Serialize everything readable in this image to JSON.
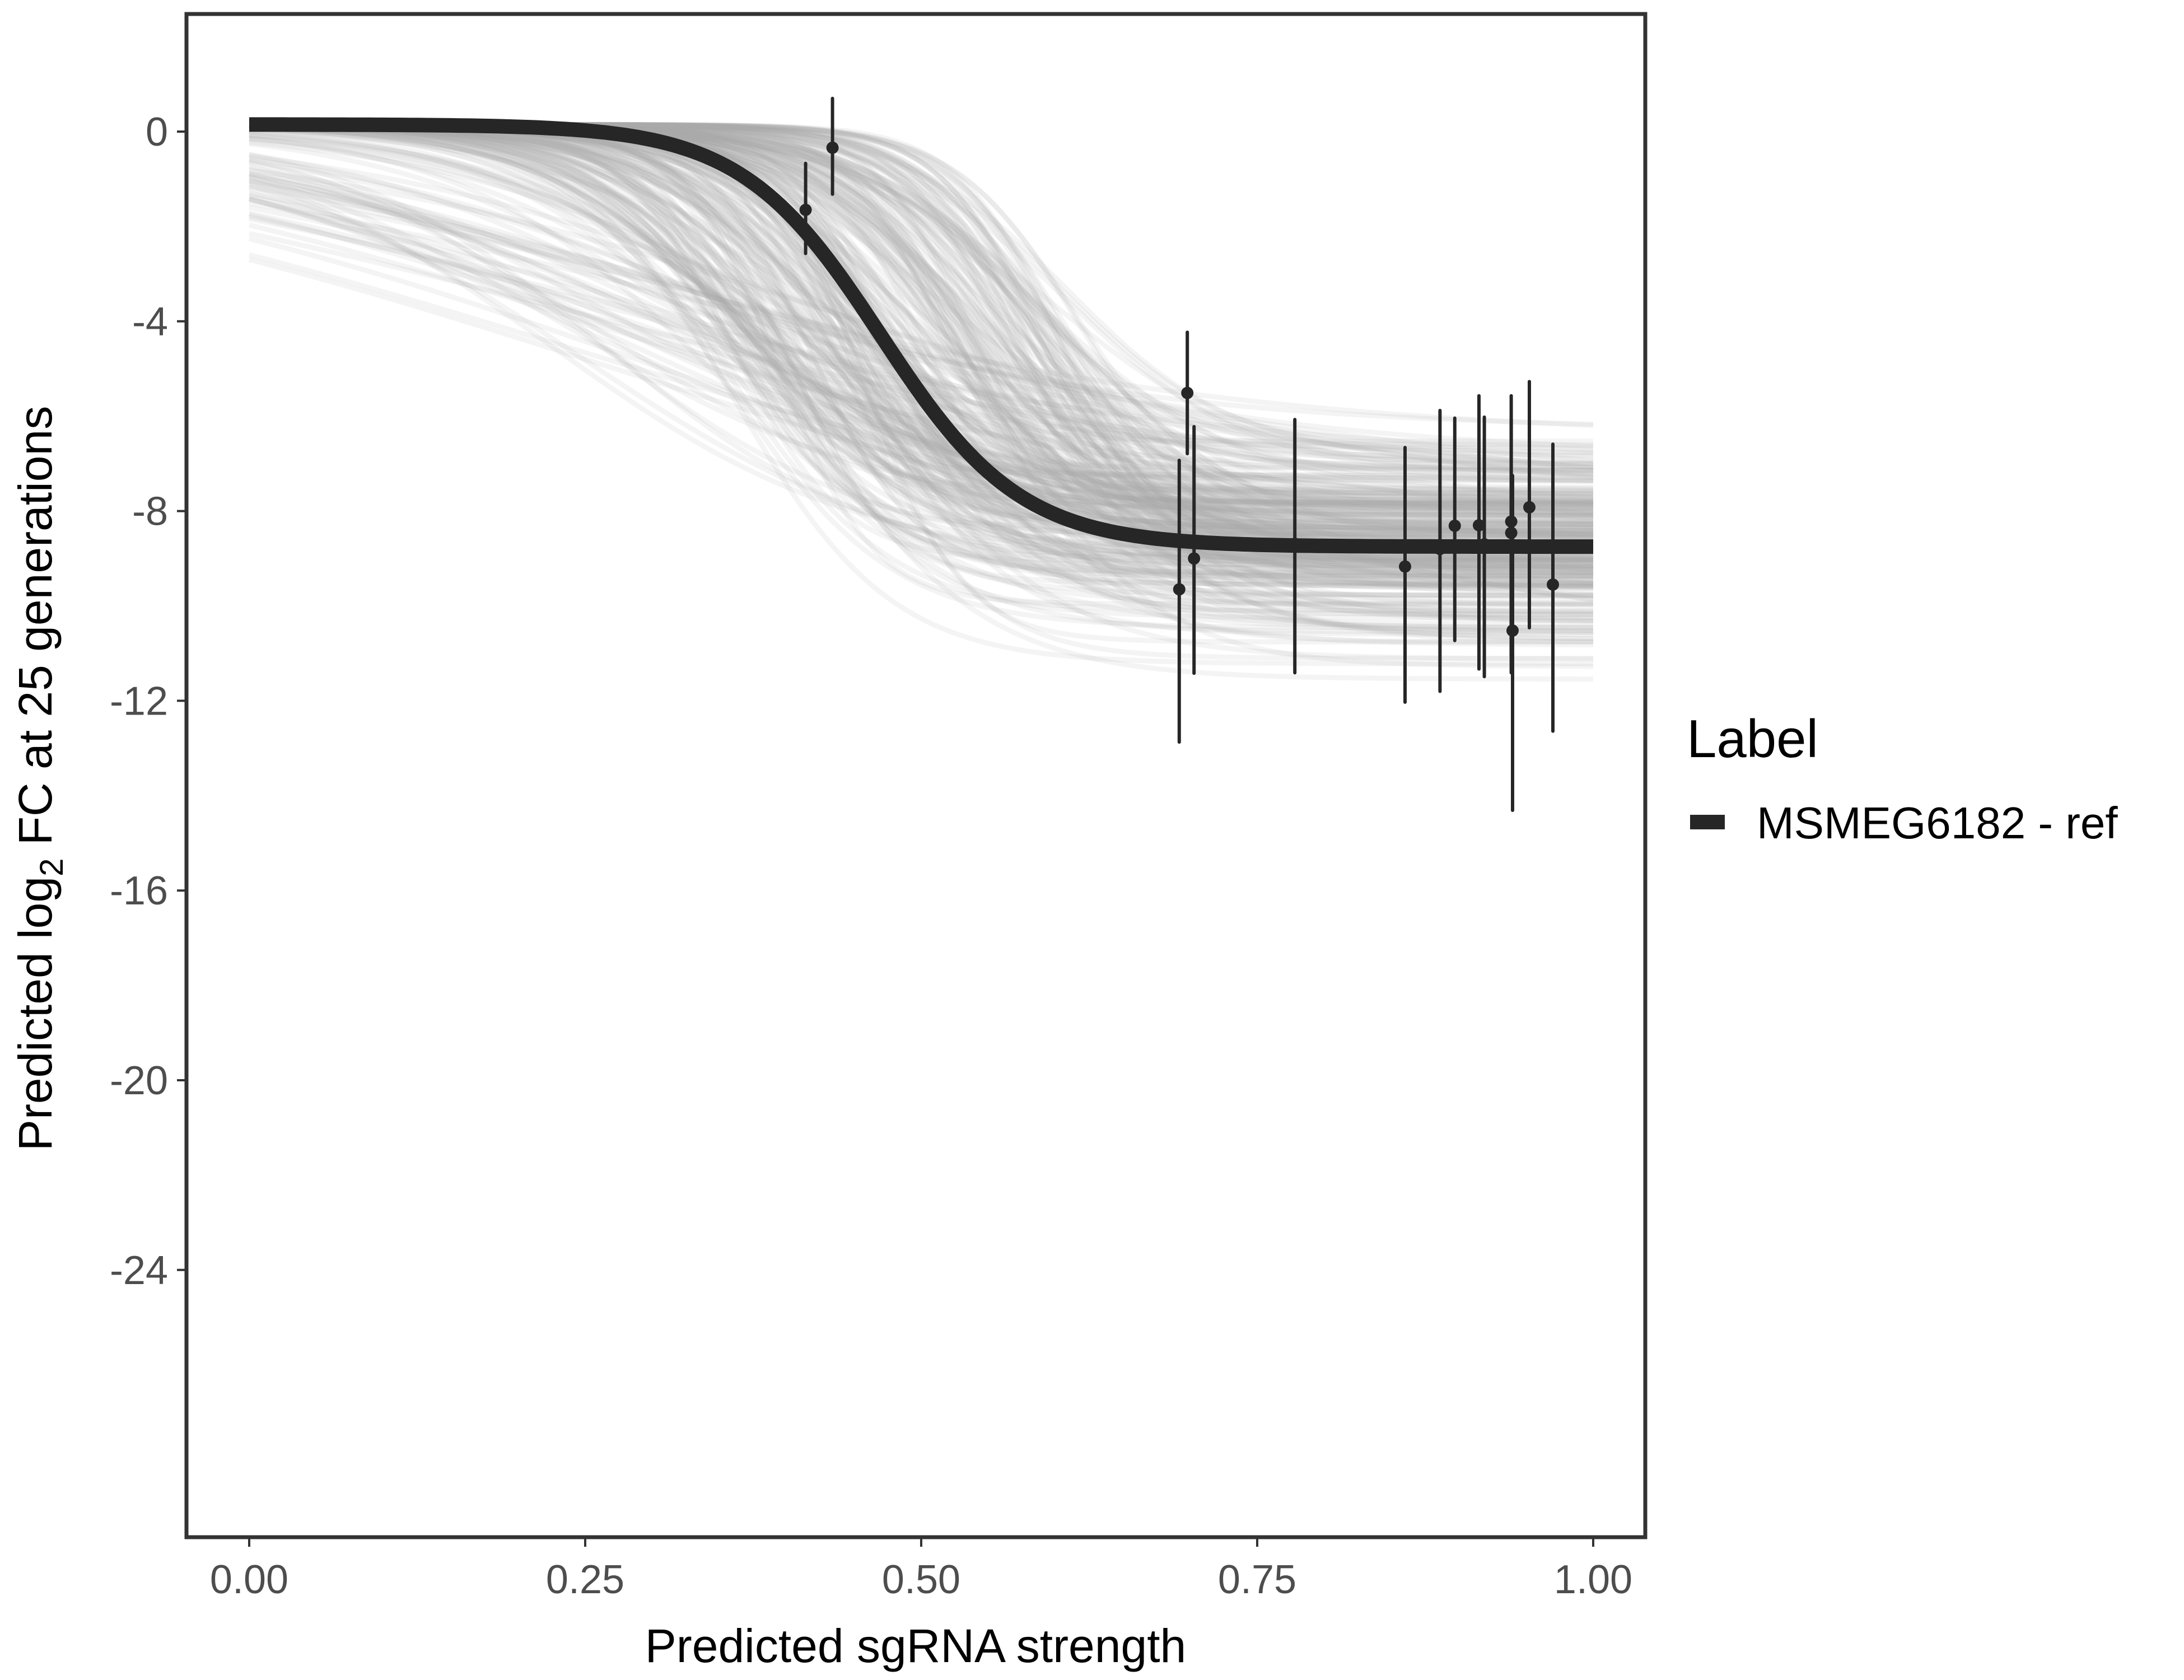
{
  "chart_data": {
    "type": "line",
    "title": "",
    "xlabel": "Predicted sgRNA strength",
    "ylabel": {
      "prefix": "Predicted  log",
      "subscript": "2",
      "suffix": " FC at 25 generations"
    },
    "xlim": [
      -0.04,
      1.04
    ],
    "ylim": [
      -29.4,
      2.5
    ],
    "x_ticks": [
      0,
      0.25,
      0.5,
      0.75,
      1
    ],
    "x_tick_labels": [
      "0.00",
      "0.25",
      "0.50",
      "0.75",
      "1.00"
    ],
    "y_ticks": [
      0,
      -4,
      -8,
      -12,
      -16,
      -20,
      -24
    ],
    "y_tick_labels": [
      "0",
      "-4",
      "-8",
      "-12",
      "-16",
      "-20",
      "-24"
    ],
    "grid": false,
    "legend": {
      "title": "Label",
      "placement": "right",
      "entries": [
        {
          "label": "MSMEG6182 - ref",
          "color": "#262626"
        }
      ]
    },
    "fit_curve": {
      "type": "logistic",
      "top": 0.15,
      "bottom": -8.75,
      "midpoint": 0.47,
      "scale": 0.052,
      "x_range": [
        0,
        1
      ],
      "color": "#262626"
    },
    "posterior_draws": {
      "count": 300,
      "color": "#aaaaaa",
      "opacity": 0.13,
      "midpoint_range": [
        0.35,
        0.62
      ],
      "bottom_range": [
        -11.7,
        -5.7
      ],
      "value_at_zero_range": [
        -3.4,
        0.2
      ]
    },
    "points": [
      {
        "x": 0.414,
        "y": -1.65,
        "lo": -2.57,
        "hi": -0.67
      },
      {
        "x": 0.434,
        "y": -0.34,
        "lo": -1.32,
        "hi": 0.7
      },
      {
        "x": 0.692,
        "y": -9.65,
        "lo": -12.87,
        "hi": -6.93
      },
      {
        "x": 0.698,
        "y": -5.51,
        "lo": -6.79,
        "hi": -4.23
      },
      {
        "x": 0.703,
        "y": -9.0,
        "lo": -11.42,
        "hi": -6.22
      },
      {
        "x": 0.778,
        "y": -8.69,
        "lo": -11.41,
        "hi": -6.07
      },
      {
        "x": 0.86,
        "y": -9.17,
        "lo": -12.03,
        "hi": -6.66
      },
      {
        "x": 0.886,
        "y": -8.8,
        "lo": -11.8,
        "hi": -5.88
      },
      {
        "x": 0.897,
        "y": -8.31,
        "lo": -10.73,
        "hi": -6.04
      },
      {
        "x": 0.915,
        "y": -8.3,
        "lo": -11.33,
        "hi": -5.57
      },
      {
        "x": 0.919,
        "y": -8.7,
        "lo": -11.49,
        "hi": -6.02
      },
      {
        "x": 0.939,
        "y": -8.22,
        "lo": -11.06,
        "hi": -5.57
      },
      {
        "x": 0.939,
        "y": -8.46,
        "lo": -11.41,
        "hi": -6.05
      },
      {
        "x": 0.94,
        "y": -10.52,
        "lo": -14.31,
        "hi": -7.25
      },
      {
        "x": 0.9525,
        "y": -7.92,
        "lo": -10.46,
        "hi": -5.27
      },
      {
        "x": 0.97,
        "y": -9.55,
        "lo": -12.64,
        "hi": -6.59
      }
    ]
  }
}
